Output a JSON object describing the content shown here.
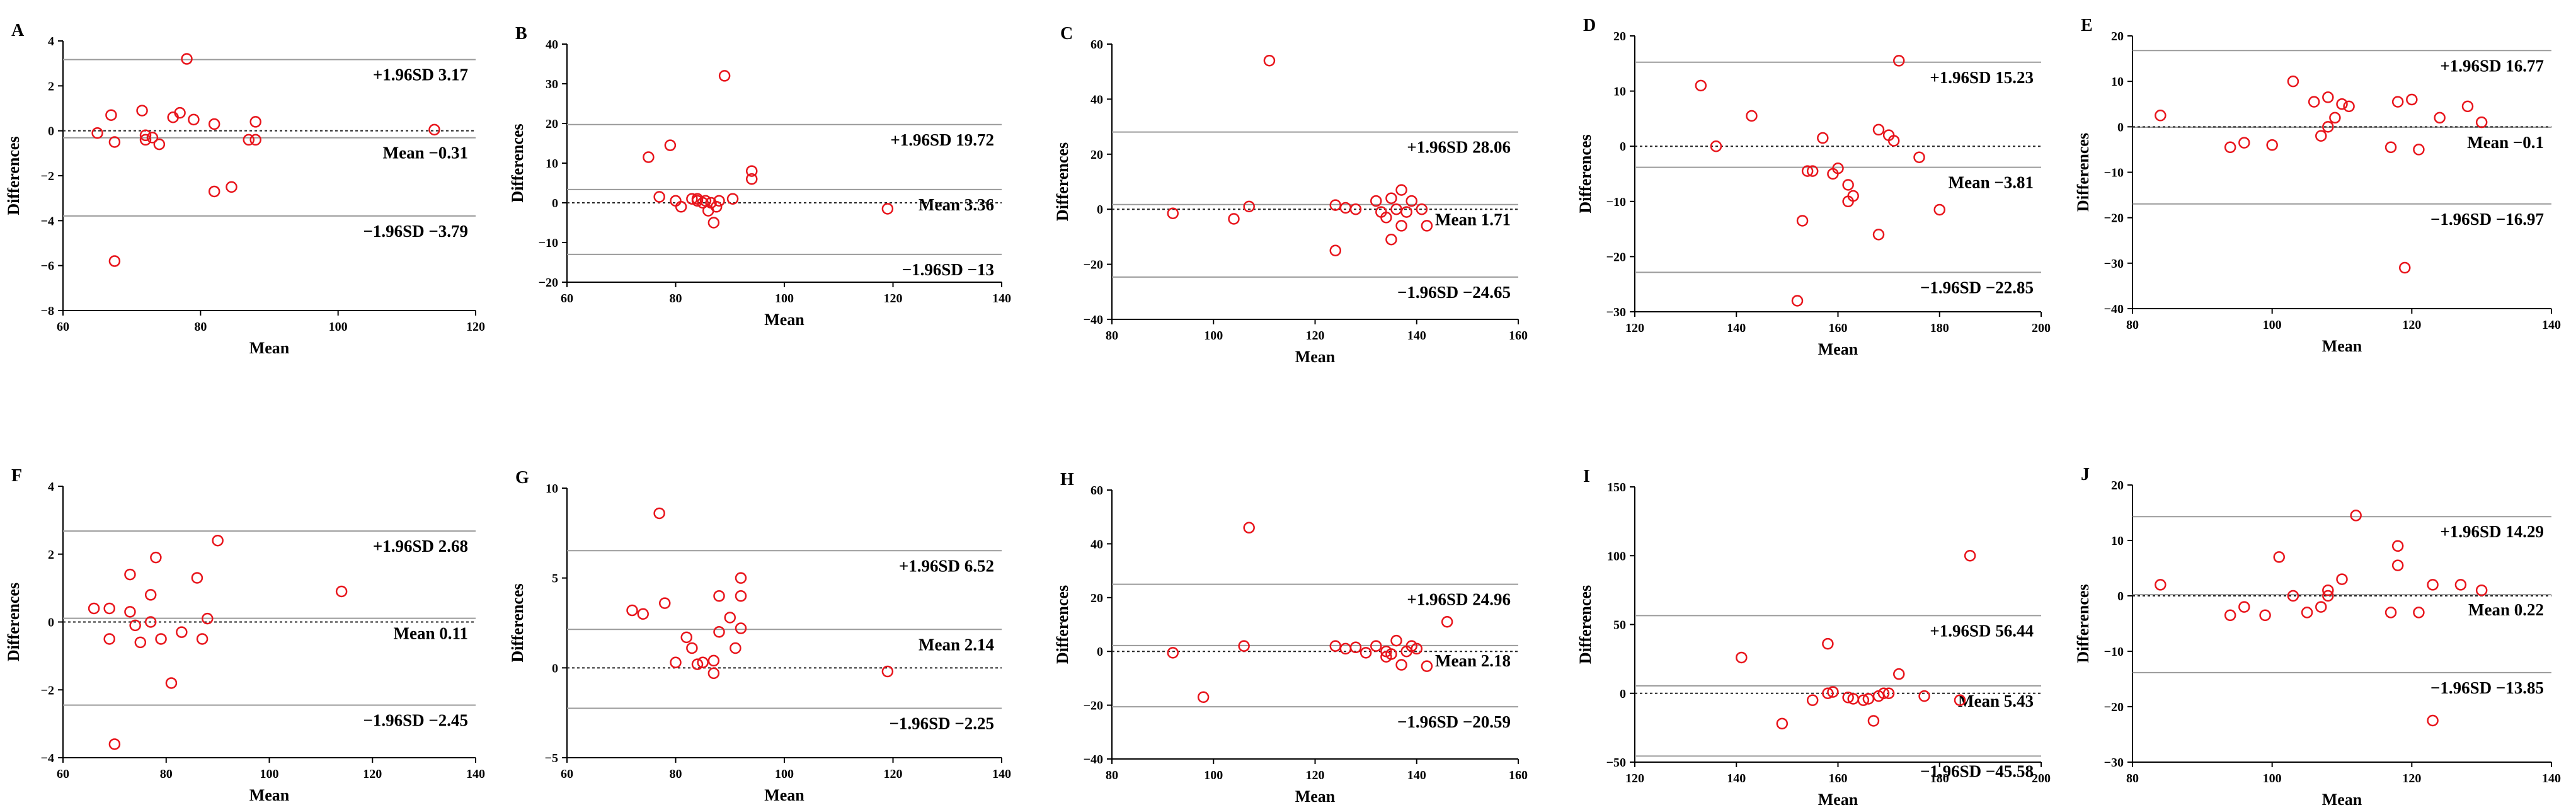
{
  "chart_data": [
    {
      "panel_label": "A",
      "type": "scatter",
      "xlabel": "Mean",
      "ylabel": "Differences",
      "xlim": [
        60,
        120
      ],
      "ylim": [
        -8,
        4
      ],
      "x_ticks": [
        "60",
        "80",
        "100",
        "120"
      ],
      "y_ticks": [
        "-8",
        "-6",
        "-4",
        "-2",
        "0",
        "2",
        "4"
      ],
      "lines": [
        {
          "label": "+1.96SD 3.17",
          "value": 3.17,
          "style": "solid"
        },
        {
          "label": "Mean -0.31",
          "value": -0.31,
          "style": "solid"
        },
        {
          "label": "-1.96SD -3.79",
          "value": -3.79,
          "style": "solid"
        },
        {
          "label": "",
          "value": 0,
          "style": "dotted"
        }
      ],
      "points": [
        [
          65,
          -0.1
        ],
        [
          67,
          0.7
        ],
        [
          67.5,
          -5.8
        ],
        [
          67.5,
          -0.5
        ],
        [
          71.5,
          0.9
        ],
        [
          72,
          -0.2
        ],
        [
          72,
          -0.4
        ],
        [
          73,
          -0.3
        ],
        [
          74,
          -0.6
        ],
        [
          76,
          0.6
        ],
        [
          77,
          0.8
        ],
        [
          78,
          3.2
        ],
        [
          79,
          0.5
        ],
        [
          82,
          0.3
        ],
        [
          82,
          -2.7
        ],
        [
          84.5,
          -2.5
        ],
        [
          87,
          -0.4
        ],
        [
          88,
          0.4
        ],
        [
          88,
          -0.4
        ],
        [
          114,
          0.05
        ]
      ]
    },
    {
      "panel_label": "B",
      "type": "scatter",
      "xlabel": "Mean",
      "ylabel": "Differences",
      "xlim": [
        60,
        140
      ],
      "ylim": [
        -20,
        40
      ],
      "x_ticks": [
        "60",
        "80",
        "100",
        "120",
        "140"
      ],
      "y_ticks": [
        "-20",
        "-10",
        "0",
        "10",
        "20",
        "30",
        "40"
      ],
      "lines": [
        {
          "label": "+1.96SD 19.72",
          "value": 19.72,
          "style": "solid"
        },
        {
          "label": "Mean 3.36",
          "value": 3.36,
          "style": "solid"
        },
        {
          "label": "-1.96SD -13",
          "value": -13,
          "style": "solid"
        },
        {
          "label": "",
          "value": 0,
          "style": "dotted"
        }
      ],
      "points": [
        [
          75,
          11.5
        ],
        [
          77,
          1.5
        ],
        [
          79,
          14.5
        ],
        [
          80,
          0.5
        ],
        [
          81,
          -1
        ],
        [
          83,
          1
        ],
        [
          84,
          0.5
        ],
        [
          84,
          1
        ],
        [
          85,
          0
        ],
        [
          85.5,
          0.5
        ],
        [
          86,
          -2
        ],
        [
          86.5,
          0
        ],
        [
          87,
          -5
        ],
        [
          87.5,
          -1
        ],
        [
          88,
          0.5
        ],
        [
          89,
          32
        ],
        [
          90.5,
          1
        ],
        [
          94,
          8
        ],
        [
          94,
          6
        ],
        [
          119,
          -1.5
        ]
      ]
    },
    {
      "panel_label": "C",
      "type": "scatter",
      "xlabel": "Mean",
      "ylabel": "Differences",
      "xlim": [
        80,
        160
      ],
      "ylim": [
        -40,
        60
      ],
      "x_ticks": [
        "80",
        "100",
        "120",
        "140",
        "160"
      ],
      "y_ticks": [
        "-40",
        "-20",
        "0",
        "20",
        "40",
        "60"
      ],
      "lines": [
        {
          "label": "+1.96SD 28.06",
          "value": 28.06,
          "style": "solid"
        },
        {
          "label": "Mean 1.71",
          "value": 1.71,
          "style": "solid"
        },
        {
          "label": "-1.96SD -24.65",
          "value": -24.65,
          "style": "solid"
        },
        {
          "label": "",
          "value": 0,
          "style": "dotted"
        }
      ],
      "points": [
        [
          92,
          -1.5
        ],
        [
          104,
          -3.5
        ],
        [
          107,
          1
        ],
        [
          111,
          54
        ],
        [
          124,
          1.5
        ],
        [
          124,
          -15
        ],
        [
          126,
          0.5
        ],
        [
          128,
          0
        ],
        [
          132,
          3
        ],
        [
          133,
          -1
        ],
        [
          134,
          -3
        ],
        [
          135,
          -11
        ],
        [
          135,
          4
        ],
        [
          136,
          0
        ],
        [
          137,
          7
        ],
        [
          137,
          -6
        ],
        [
          138,
          -1
        ],
        [
          139,
          3
        ],
        [
          141,
          0
        ],
        [
          142,
          -6
        ]
      ]
    },
    {
      "panel_label": "D",
      "type": "scatter",
      "xlabel": "Mean",
      "ylabel": "Differences",
      "xlim": [
        120,
        200
      ],
      "ylim": [
        -30,
        20
      ],
      "x_ticks": [
        "120",
        "140",
        "160",
        "180",
        "200"
      ],
      "y_ticks": [
        "-30",
        "-20",
        "-10",
        "0",
        "10",
        "20"
      ],
      "lines": [
        {
          "label": "+1.96SD 15.23",
          "value": 15.23,
          "style": "solid"
        },
        {
          "label": "Mean -3.81",
          "value": -3.81,
          "style": "solid"
        },
        {
          "label": "-1.96SD -22.85",
          "value": -22.85,
          "style": "solid"
        },
        {
          "label": "",
          "value": 0,
          "style": "dotted"
        }
      ],
      "points": [
        [
          133,
          11
        ],
        [
          136,
          0
        ],
        [
          143,
          5.5
        ],
        [
          152,
          -28
        ],
        [
          153,
          -13.5
        ],
        [
          154,
          -4.5
        ],
        [
          155,
          -4.5
        ],
        [
          157,
          1.5
        ],
        [
          159,
          -5
        ],
        [
          160,
          -4
        ],
        [
          162,
          -10
        ],
        [
          162,
          -7
        ],
        [
          163,
          -9
        ],
        [
          168,
          3
        ],
        [
          168,
          -16
        ],
        [
          170,
          2
        ],
        [
          171,
          1
        ],
        [
          172,
          15.5
        ],
        [
          176,
          -2
        ],
        [
          180,
          -11.5
        ]
      ]
    },
    {
      "panel_label": "E",
      "type": "scatter",
      "xlabel": "Mean",
      "ylabel": "Differences",
      "xlim": [
        80,
        140
      ],
      "ylim": [
        -40,
        20
      ],
      "x_ticks": [
        "80",
        "100",
        "120",
        "140"
      ],
      "y_ticks": [
        "-40",
        "-30",
        "-20",
        "-10",
        "0",
        "10",
        "20"
      ],
      "lines": [
        {
          "label": "+1.96SD 16.77",
          "value": 16.77,
          "style": "solid"
        },
        {
          "label": "Mean -0.1",
          "value": -0.1,
          "style": "solid"
        },
        {
          "label": "-1.96SD -16.97",
          "value": -16.97,
          "style": "solid"
        },
        {
          "label": "",
          "value": 0,
          "style": "dotted"
        }
      ],
      "points": [
        [
          84,
          2.5
        ],
        [
          94,
          -4.5
        ],
        [
          96,
          -3.5
        ],
        [
          100,
          -4
        ],
        [
          103,
          10
        ],
        [
          106,
          5.5
        ],
        [
          107,
          -2
        ],
        [
          108,
          6.5
        ],
        [
          108,
          0
        ],
        [
          109,
          2
        ],
        [
          110,
          5
        ],
        [
          111,
          4.5
        ],
        [
          117,
          -4.5
        ],
        [
          118,
          5.5
        ],
        [
          119,
          -31
        ],
        [
          120,
          6
        ],
        [
          121,
          -5
        ],
        [
          124,
          2
        ],
        [
          128,
          4.5
        ],
        [
          130,
          1
        ]
      ]
    },
    {
      "panel_label": "F",
      "type": "scatter",
      "xlabel": "Mean",
      "ylabel": "Differences",
      "xlim": [
        60,
        140
      ],
      "ylim": [
        -4,
        4
      ],
      "x_ticks": [
        "60",
        "80",
        "100",
        "120",
        "140"
      ],
      "y_ticks": [
        "-4",
        "-2",
        "0",
        "2",
        "4"
      ],
      "lines": [
        {
          "label": "+1.96SD 2.68",
          "value": 2.68,
          "style": "solid"
        },
        {
          "label": "Mean 0.11",
          "value": 0.11,
          "style": "solid"
        },
        {
          "label": "-1.96SD -2.45",
          "value": -2.45,
          "style": "solid"
        },
        {
          "label": "",
          "value": 0,
          "style": "dotted"
        }
      ],
      "points": [
        [
          66,
          0.4
        ],
        [
          69,
          0.4
        ],
        [
          69,
          -0.5
        ],
        [
          70,
          -3.6
        ],
        [
          73,
          1.4
        ],
        [
          73,
          0.3
        ],
        [
          74,
          -0.1
        ],
        [
          75,
          -0.6
        ],
        [
          77,
          0.8
        ],
        [
          77,
          0
        ],
        [
          78,
          1.9
        ],
        [
          79,
          -0.5
        ],
        [
          81,
          -1.8
        ],
        [
          83,
          -0.3
        ],
        [
          86,
          1.3
        ],
        [
          87,
          -0.5
        ],
        [
          88,
          0.1
        ],
        [
          90,
          2.4
        ],
        [
          114,
          0.9
        ]
      ]
    },
    {
      "panel_label": "G",
      "type": "scatter",
      "xlabel": "Mean",
      "ylabel": "Differences",
      "xlim": [
        60,
        140
      ],
      "ylim": [
        -5,
        10
      ],
      "x_ticks": [
        "60",
        "80",
        "100",
        "120",
        "140"
      ],
      "y_ticks": [
        "-5",
        "0",
        "5",
        "10"
      ],
      "lines": [
        {
          "label": "+1.96SD 6.52",
          "value": 6.52,
          "style": "solid"
        },
        {
          "label": "Mean 2.14",
          "value": 2.14,
          "style": "solid"
        },
        {
          "label": "-1.96SD -2.25",
          "value": -2.25,
          "style": "solid"
        },
        {
          "label": "",
          "value": 0,
          "style": "dotted"
        }
      ],
      "points": [
        [
          72,
          3.2
        ],
        [
          74,
          3
        ],
        [
          77,
          8.6
        ],
        [
          78,
          3.6
        ],
        [
          80,
          0.3
        ],
        [
          82,
          1.7
        ],
        [
          83,
          1.1
        ],
        [
          84,
          0.2
        ],
        [
          85,
          0.3
        ],
        [
          87,
          -0.3
        ],
        [
          87,
          0.4
        ],
        [
          88,
          4
        ],
        [
          88,
          2
        ],
        [
          90,
          2.8
        ],
        [
          91,
          1.1
        ],
        [
          92,
          5
        ],
        [
          92,
          4
        ],
        [
          92,
          2.2
        ],
        [
          119,
          -0.2
        ]
      ]
    },
    {
      "panel_label": "H",
      "type": "scatter",
      "xlabel": "Mean",
      "ylabel": "Differences",
      "xlim": [
        80,
        160
      ],
      "ylim": [
        -40,
        60
      ],
      "x_ticks": [
        "80",
        "100",
        "120",
        "140",
        "160"
      ],
      "y_ticks": [
        "-40",
        "-20",
        "0",
        "20",
        "40",
        "60"
      ],
      "lines": [
        {
          "label": "+1.96SD 24.96",
          "value": 24.96,
          "style": "solid"
        },
        {
          "label": "Mean 2.18",
          "value": 2.18,
          "style": "solid"
        },
        {
          "label": "-1.96SD -20.59",
          "value": -20.59,
          "style": "solid"
        },
        {
          "label": "",
          "value": 0,
          "style": "dotted"
        }
      ],
      "points": [
        [
          92,
          -0.5
        ],
        [
          98,
          -17
        ],
        [
          106,
          2
        ],
        [
          107,
          46
        ],
        [
          124,
          2
        ],
        [
          126,
          1
        ],
        [
          128,
          1.5
        ],
        [
          130,
          -0.5
        ],
        [
          132,
          2
        ],
        [
          134,
          0
        ],
        [
          134,
          -2
        ],
        [
          135,
          -1
        ],
        [
          136,
          4
        ],
        [
          137,
          -5
        ],
        [
          138,
          0
        ],
        [
          139,
          2
        ],
        [
          140,
          1
        ],
        [
          142,
          -5.5
        ],
        [
          146,
          11
        ]
      ]
    },
    {
      "panel_label": "I",
      "type": "scatter",
      "xlabel": "Mean",
      "ylabel": "Differences",
      "xlim": [
        120,
        200
      ],
      "ylim": [
        -50,
        150
      ],
      "x_ticks": [
        "120",
        "140",
        "160",
        "180",
        "200"
      ],
      "y_ticks": [
        "-50",
        "0",
        "50",
        "100",
        "150"
      ],
      "lines": [
        {
          "label": "+1.96SD 56.44",
          "value": 56.44,
          "style": "solid"
        },
        {
          "label": "Mean 5.43",
          "value": 5.43,
          "style": "solid"
        },
        {
          "label": "-1.96SD -45.58",
          "value": -45.58,
          "style": "solid"
        },
        {
          "label": "",
          "value": 0,
          "style": "dotted"
        }
      ],
      "points": [
        [
          141,
          26
        ],
        [
          149,
          -22
        ],
        [
          155,
          -5
        ],
        [
          158,
          0
        ],
        [
          158,
          36
        ],
        [
          159,
          1
        ],
        [
          162,
          -3
        ],
        [
          163,
          -4
        ],
        [
          165,
          -5
        ],
        [
          166,
          -4
        ],
        [
          167,
          -20
        ],
        [
          168,
          -2
        ],
        [
          169,
          0
        ],
        [
          170,
          0
        ],
        [
          172,
          14
        ],
        [
          177,
          -2
        ],
        [
          184,
          -5
        ],
        [
          186,
          100
        ]
      ]
    },
    {
      "panel_label": "J",
      "type": "scatter",
      "xlabel": "Mean",
      "ylabel": "Differences",
      "xlim": [
        80,
        140
      ],
      "ylim": [
        -30,
        20
      ],
      "x_ticks": [
        "80",
        "100",
        "120",
        "140"
      ],
      "y_ticks": [
        "-30",
        "-20",
        "-10",
        "0",
        "10",
        "20"
      ],
      "lines": [
        {
          "label": "+1.96SD 14.29",
          "value": 14.29,
          "style": "solid"
        },
        {
          "label": "Mean 0.22",
          "value": 0.22,
          "style": "solid"
        },
        {
          "label": "-1.96SD -13.85",
          "value": -13.85,
          "style": "solid"
        },
        {
          "label": "",
          "value": 0,
          "style": "dotted"
        }
      ],
      "points": [
        [
          84,
          2
        ],
        [
          94,
          -3.5
        ],
        [
          96,
          -2
        ],
        [
          99,
          -3.5
        ],
        [
          101,
          7
        ],
        [
          103,
          0
        ],
        [
          105,
          -3
        ],
        [
          107,
          -2
        ],
        [
          108,
          0
        ],
        [
          108,
          1
        ],
        [
          110,
          3
        ],
        [
          112,
          14.5
        ],
        [
          117,
          -3
        ],
        [
          118,
          9
        ],
        [
          118,
          5.5
        ],
        [
          121,
          -3
        ],
        [
          123,
          -22.5
        ],
        [
          123,
          2
        ],
        [
          127,
          2
        ],
        [
          130,
          1
        ]
      ]
    }
  ]
}
